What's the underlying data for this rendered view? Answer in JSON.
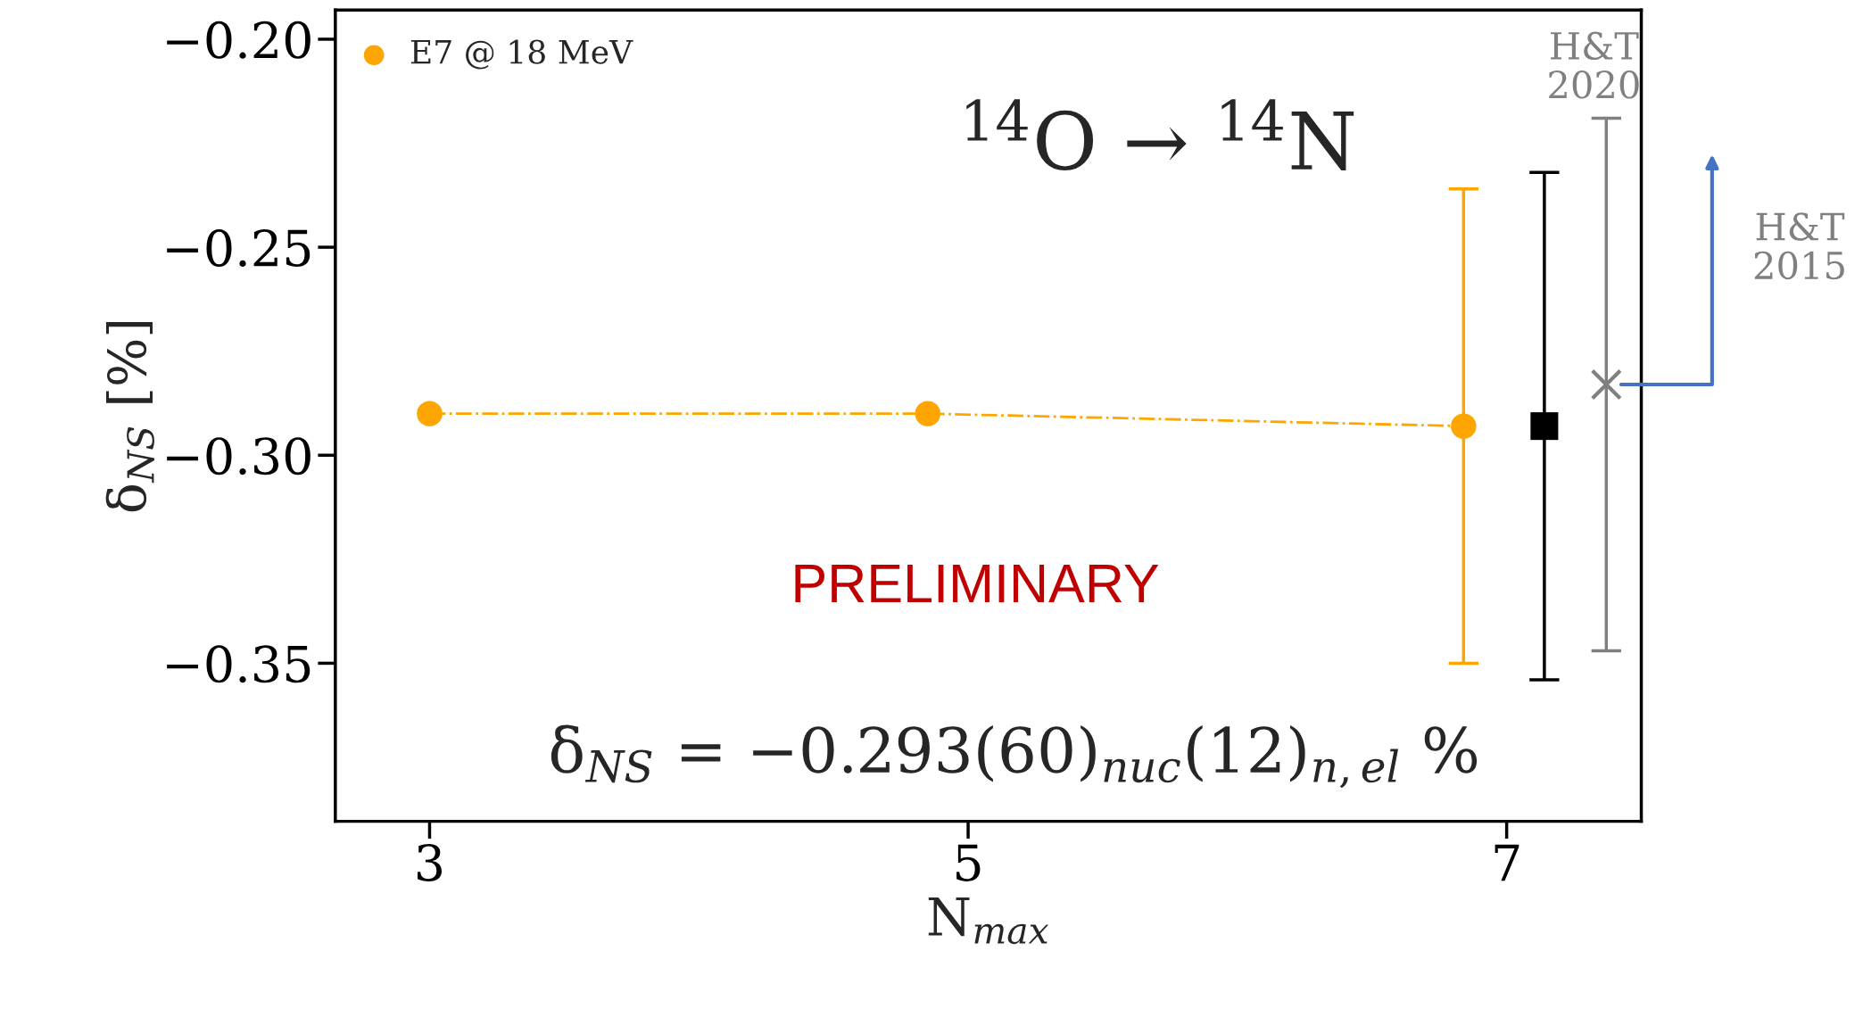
{
  "chart_data": {
    "type": "line",
    "title": "$^{14}$O → $^{14}$N",
    "xlabel": "N$_{max}$",
    "ylabel": "δ$_{NS}$ [%]",
    "xlim": [
      2.65,
      7.5
    ],
    "xticks": [
      3,
      5,
      7
    ],
    "ylim": [
      -0.388,
      -0.193
    ],
    "yticks": [
      {
        "value": -0.35,
        "label": "−0.35"
      },
      {
        "value": -0.3,
        "label": "−0.30"
      },
      {
        "value": -0.25,
        "label": "−0.25"
      },
      {
        "value": -0.2,
        "label": "−0.20"
      }
    ],
    "series": [
      {
        "name": "E7 @ 18 MeV",
        "color": "#ffa500",
        "marker": "circle",
        "line_style": "dashdot",
        "x": [
          3,
          4.85,
          6.84
        ],
        "values": [
          -0.29,
          -0.29,
          -0.293
        ],
        "errors": [
          null,
          null,
          0.057
        ]
      },
      {
        "type": "scatter",
        "color": "#000000",
        "marker": "square",
        "x": [
          7.14
        ],
        "values": [
          -0.293
        ],
        "errors": [
          0.061
        ]
      },
      {
        "type": "scatter",
        "color": "#808080",
        "marker": "cross",
        "x": [
          7.37
        ],
        "values": [
          -0.283
        ],
        "errors": [
          0.064
        ]
      }
    ],
    "annotations": [
      {
        "text": "H&T\n2020",
        "x": 7.37,
        "y": -0.219
      },
      "H&T\n2015",
      "PRELIMINARY",
      "δ$_{NS}$ = −0.293(60)$_{nuc}$(12)$_{n,el}$ %"
    ],
    "legend": "top left",
    "grid": false
  }
}
